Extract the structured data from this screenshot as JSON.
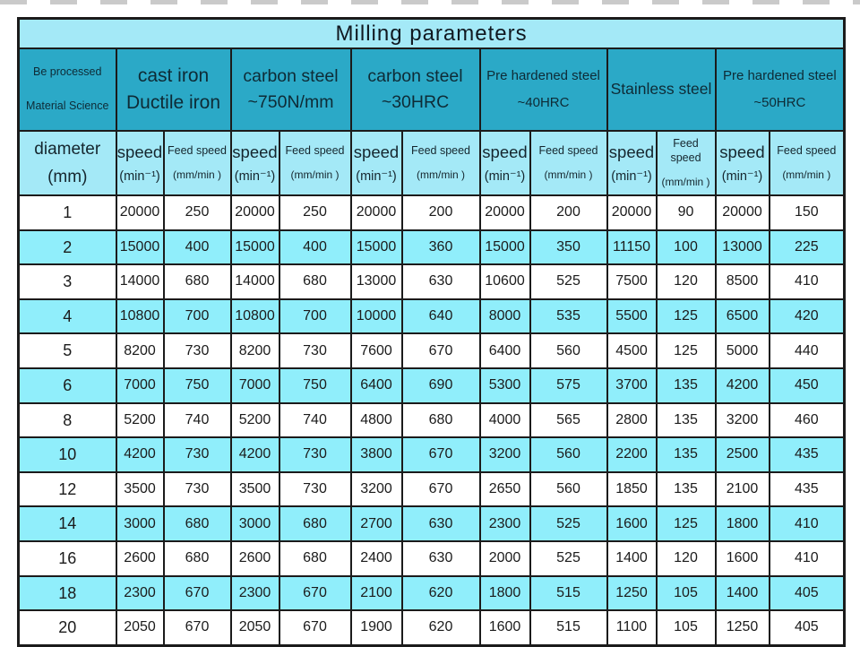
{
  "title": "Milling parameters",
  "colors": {
    "teal_header": "#2ba9c7",
    "light_cyan_header": "#a4e9f7",
    "row_stripe_cyan": "#90eefb",
    "border": "#1b1b1b"
  },
  "table": {
    "corner": {
      "line1": "Be processed",
      "line2": "Material Science"
    },
    "materials": [
      {
        "line1": "cast iron",
        "line2": "Ductile iron"
      },
      {
        "line1": "carbon steel",
        "line2": "~750N/mm"
      },
      {
        "line1": "carbon steel",
        "line2": "~30HRC"
      },
      {
        "line1": "Pre hardened steel",
        "line2": "~40HRC"
      },
      {
        "line1": "Stainless steel",
        "line2": ""
      },
      {
        "line1": "Pre hardened steel",
        "line2": "~50HRC"
      }
    ],
    "subheader": {
      "diameter_line1": "diameter",
      "diameter_line2": "(mm)",
      "speed_label": "speed",
      "speed_unit": "(min⁻¹)",
      "feed_label": "Feed speed",
      "feed_unit": "(mm/min )"
    },
    "rows": [
      {
        "diameter": "1",
        "values": [
          "20000",
          "250",
          "20000",
          "250",
          "20000",
          "200",
          "20000",
          "200",
          "20000",
          "90",
          "20000",
          "150"
        ]
      },
      {
        "diameter": "2",
        "values": [
          "15000",
          "400",
          "15000",
          "400",
          "15000",
          "360",
          "15000",
          "350",
          "11150",
          "100",
          "13000",
          "225"
        ]
      },
      {
        "diameter": "3",
        "values": [
          "14000",
          "680",
          "14000",
          "680",
          "13000",
          "630",
          "10600",
          "525",
          "7500",
          "120",
          "8500",
          "410"
        ]
      },
      {
        "diameter": "4",
        "values": [
          "10800",
          "700",
          "10800",
          "700",
          "10000",
          "640",
          "8000",
          "535",
          "5500",
          "125",
          "6500",
          "420"
        ]
      },
      {
        "diameter": "5",
        "values": [
          "8200",
          "730",
          "8200",
          "730",
          "7600",
          "670",
          "6400",
          "560",
          "4500",
          "125",
          "5000",
          "440"
        ]
      },
      {
        "diameter": "6",
        "values": [
          "7000",
          "750",
          "7000",
          "750",
          "6400",
          "690",
          "5300",
          "575",
          "3700",
          "135",
          "4200",
          "450"
        ]
      },
      {
        "diameter": "8",
        "values": [
          "5200",
          "740",
          "5200",
          "740",
          "4800",
          "680",
          "4000",
          "565",
          "2800",
          "135",
          "3200",
          "460"
        ]
      },
      {
        "diameter": "10",
        "values": [
          "4200",
          "730",
          "4200",
          "730",
          "3800",
          "670",
          "3200",
          "560",
          "2200",
          "135",
          "2500",
          "435"
        ]
      },
      {
        "diameter": "12",
        "values": [
          "3500",
          "730",
          "3500",
          "730",
          "3200",
          "670",
          "2650",
          "560",
          "1850",
          "135",
          "2100",
          "435"
        ]
      },
      {
        "diameter": "14",
        "values": [
          "3000",
          "680",
          "3000",
          "680",
          "2700",
          "630",
          "2300",
          "525",
          "1600",
          "125",
          "1800",
          "410"
        ]
      },
      {
        "diameter": "16",
        "values": [
          "2600",
          "680",
          "2600",
          "680",
          "2400",
          "630",
          "2000",
          "525",
          "1400",
          "120",
          "1600",
          "410"
        ]
      },
      {
        "diameter": "18",
        "values": [
          "2300",
          "670",
          "2300",
          "670",
          "2100",
          "620",
          "1800",
          "515",
          "1250",
          "105",
          "1400",
          "405"
        ]
      },
      {
        "diameter": "20",
        "values": [
          "2050",
          "670",
          "2050",
          "670",
          "1900",
          "620",
          "1600",
          "515",
          "1100",
          "105",
          "1250",
          "405"
        ]
      }
    ]
  }
}
